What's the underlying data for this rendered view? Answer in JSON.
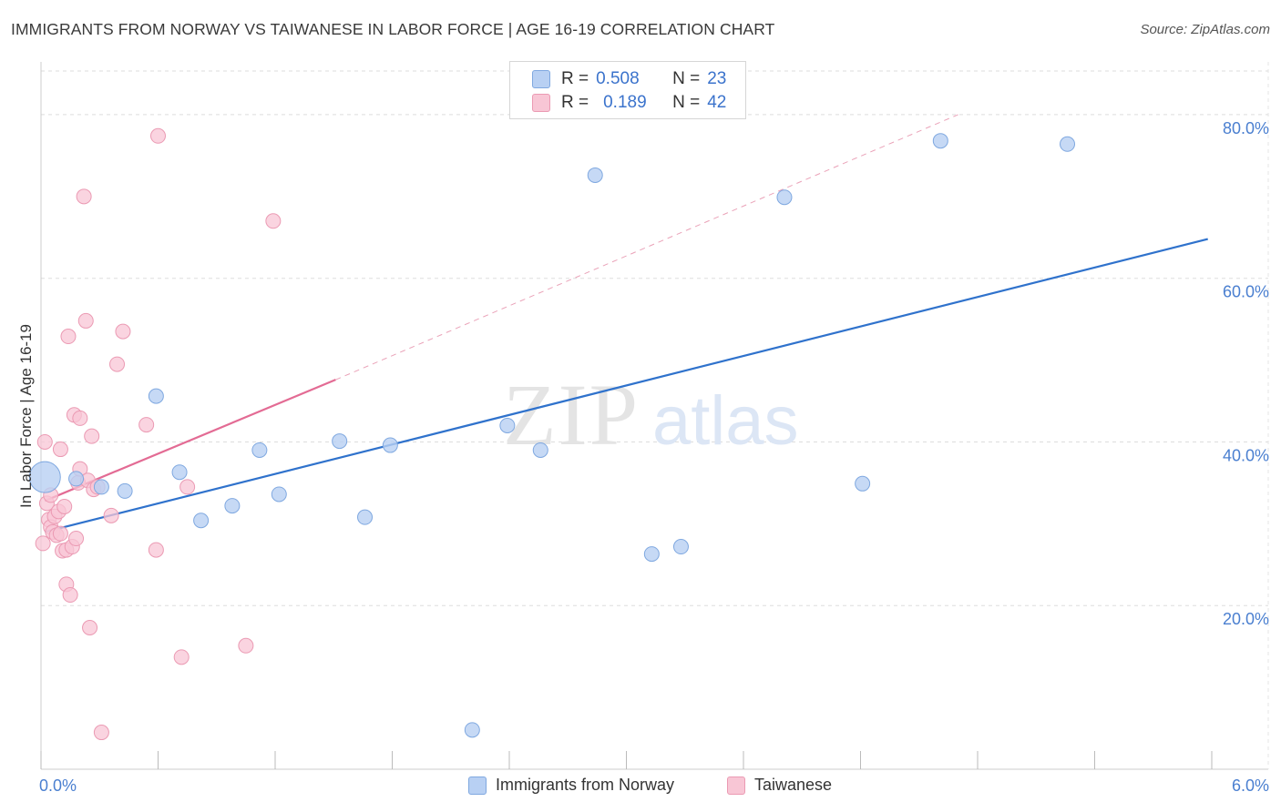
{
  "title": "IMMIGRANTS FROM NORWAY VS TAIWANESE IN LABOR FORCE | AGE 16-19 CORRELATION CHART",
  "source": "Source: ZipAtlas.com",
  "watermark": {
    "zip": "ZIP",
    "atlas": "atlas"
  },
  "legend": {
    "r_label": "R =",
    "n_label": "N =",
    "rows": [
      {
        "r": "0.508",
        "n": "23"
      },
      {
        "r": "0.189",
        "n": "42"
      }
    ]
  },
  "chart_data": {
    "type": "scatter",
    "title": "IMMIGRANTS FROM NORWAY VS TAIWANESE IN LABOR FORCE | AGE 16-19 CORRELATION CHART",
    "xlabel": "",
    "ylabel": "In Labor Force | Age 16-19",
    "xlim": [
      0,
      6.0
    ],
    "ylim": [
      0,
      86
    ],
    "x_tick_labels": [
      "0.0%",
      "6.0%"
    ],
    "y_ticks": [
      20,
      40,
      60,
      80
    ],
    "y_tick_labels": [
      "20.0%",
      "40.0%",
      "60.0%",
      "80.0%"
    ],
    "colors": {
      "norway_fill": "#b8d0f3",
      "norway_stroke": "#7fa8e0",
      "norway_line": "#2f72cc",
      "taiwanese_fill": "#f8c6d5",
      "taiwanese_stroke": "#eb9ab3",
      "taiwanese_line": "#e36b94",
      "tick_label": "#4a7fd0"
    },
    "series": [
      {
        "name": "Immigrants from Norway",
        "points": [
          {
            "x": 0.02,
            "y": 35.7,
            "big": true
          },
          {
            "x": 0.18,
            "y": 35.5
          },
          {
            "x": 0.31,
            "y": 34.5
          },
          {
            "x": 0.43,
            "y": 34.0
          },
          {
            "x": 0.59,
            "y": 45.6
          },
          {
            "x": 0.71,
            "y": 36.3
          },
          {
            "x": 0.82,
            "y": 30.4
          },
          {
            "x": 0.98,
            "y": 32.2
          },
          {
            "x": 1.12,
            "y": 39.0
          },
          {
            "x": 1.22,
            "y": 33.6
          },
          {
            "x": 1.53,
            "y": 40.1
          },
          {
            "x": 1.66,
            "y": 30.8
          },
          {
            "x": 1.79,
            "y": 39.6
          },
          {
            "x": 2.21,
            "y": 4.8
          },
          {
            "x": 2.39,
            "y": 42.0
          },
          {
            "x": 2.56,
            "y": 39.0
          },
          {
            "x": 2.84,
            "y": 72.6
          },
          {
            "x": 3.13,
            "y": 26.3
          },
          {
            "x": 3.28,
            "y": 27.2
          },
          {
            "x": 3.81,
            "y": 69.9
          },
          {
            "x": 4.21,
            "y": 34.9
          },
          {
            "x": 4.61,
            "y": 76.8
          },
          {
            "x": 5.26,
            "y": 76.4
          }
        ],
        "trend": {
          "x0": 0.02,
          "y0": 29.0,
          "x1": 5.98,
          "y1": 64.8
        }
      },
      {
        "name": "Taiwanese",
        "points": [
          {
            "x": 0.01,
            "y": 27.6
          },
          {
            "x": 0.02,
            "y": 40.0
          },
          {
            "x": 0.03,
            "y": 32.5
          },
          {
            "x": 0.04,
            "y": 30.5
          },
          {
            "x": 0.05,
            "y": 29.6
          },
          {
            "x": 0.05,
            "y": 33.5
          },
          {
            "x": 0.06,
            "y": 29.0
          },
          {
            "x": 0.07,
            "y": 30.9
          },
          {
            "x": 0.08,
            "y": 28.6
          },
          {
            "x": 0.09,
            "y": 31.5
          },
          {
            "x": 0.1,
            "y": 39.1
          },
          {
            "x": 0.1,
            "y": 28.8
          },
          {
            "x": 0.11,
            "y": 26.7
          },
          {
            "x": 0.12,
            "y": 32.1
          },
          {
            "x": 0.13,
            "y": 26.8
          },
          {
            "x": 0.13,
            "y": 22.6
          },
          {
            "x": 0.14,
            "y": 52.9
          },
          {
            "x": 0.15,
            "y": 21.3
          },
          {
            "x": 0.16,
            "y": 27.2
          },
          {
            "x": 0.17,
            "y": 43.3
          },
          {
            "x": 0.18,
            "y": 28.2
          },
          {
            "x": 0.19,
            "y": 35.0
          },
          {
            "x": 0.2,
            "y": 42.9
          },
          {
            "x": 0.2,
            "y": 36.7
          },
          {
            "x": 0.22,
            "y": 70.0
          },
          {
            "x": 0.23,
            "y": 54.8
          },
          {
            "x": 0.24,
            "y": 35.3
          },
          {
            "x": 0.25,
            "y": 17.3
          },
          {
            "x": 0.26,
            "y": 40.7
          },
          {
            "x": 0.27,
            "y": 34.2
          },
          {
            "x": 0.29,
            "y": 34.5
          },
          {
            "x": 0.31,
            "y": 4.5
          },
          {
            "x": 0.36,
            "y": 31.0
          },
          {
            "x": 0.39,
            "y": 49.5
          },
          {
            "x": 0.42,
            "y": 53.5
          },
          {
            "x": 0.54,
            "y": 42.1
          },
          {
            "x": 0.59,
            "y": 26.8
          },
          {
            "x": 0.6,
            "y": 77.4
          },
          {
            "x": 0.72,
            "y": 13.7
          },
          {
            "x": 0.75,
            "y": 34.5
          },
          {
            "x": 1.05,
            "y": 15.1
          },
          {
            "x": 1.19,
            "y": 67.0
          }
        ],
        "trend": {
          "x0": 0.02,
          "y0": 32.8,
          "x1": 1.51,
          "y1": 47.6
        },
        "trend_extension": {
          "x0": 1.51,
          "y0": 47.6,
          "x1": 4.7,
          "y1": 80.0
        }
      }
    ]
  },
  "bottom_legend": [
    {
      "label": "Immigrants from Norway"
    },
    {
      "label": "Taiwanese"
    }
  ]
}
